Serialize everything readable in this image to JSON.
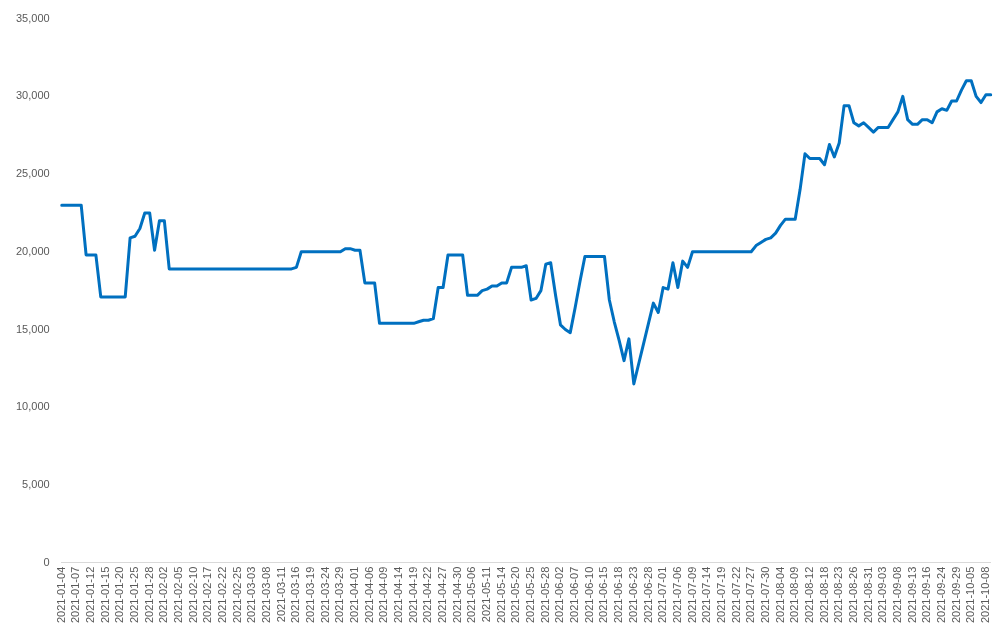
{
  "chart_data": {
    "type": "line",
    "categories": [
      "2021-01-04",
      null,
      null,
      "2021-01-07",
      null,
      null,
      "2021-01-12",
      null,
      null,
      "2021-01-15",
      null,
      null,
      "2021-01-20",
      null,
      null,
      "2021-01-25",
      null,
      null,
      "2021-01-28",
      null,
      null,
      "2021-02-02",
      null,
      null,
      "2021-02-05",
      null,
      null,
      "2021-02-10",
      null,
      null,
      "2021-02-17",
      null,
      null,
      "2021-02-22",
      null,
      null,
      "2021-02-25",
      null,
      null,
      "2021-03-03",
      null,
      null,
      "2021-03-08",
      null,
      null,
      "2021-03-11",
      null,
      null,
      "2021-03-16",
      null,
      null,
      "2021-03-19",
      null,
      null,
      "2021-03-24",
      null,
      null,
      "2021-03-29",
      null,
      null,
      "2021-04-01",
      null,
      null,
      "2021-04-06",
      null,
      null,
      "2021-04-09",
      null,
      null,
      "2021-04-14",
      null,
      null,
      "2021-04-19",
      null,
      null,
      "2021-04-22",
      null,
      null,
      "2021-04-27",
      null,
      null,
      "2021-04-30",
      null,
      null,
      "2021-05-06",
      null,
      null,
      "2021-05-11",
      null,
      null,
      "2021-05-14",
      null,
      null,
      "2021-05-20",
      null,
      null,
      "2021-05-25",
      null,
      null,
      "2021-05-28",
      null,
      null,
      "2021-06-02",
      null,
      null,
      "2021-06-07",
      null,
      null,
      "2021-06-10",
      null,
      null,
      "2021-06-15",
      null,
      null,
      "2021-06-18",
      null,
      null,
      "2021-06-23",
      null,
      null,
      "2021-06-28",
      null,
      null,
      "2021-07-01",
      null,
      null,
      "2021-07-06",
      null,
      null,
      "2021-07-09",
      null,
      null,
      "2021-07-14",
      null,
      null,
      "2021-07-19",
      null,
      null,
      "2021-07-22",
      null,
      null,
      "2021-07-27",
      null,
      null,
      "2021-07-30",
      null,
      null,
      "2021-08-04",
      null,
      null,
      "2021-08-09",
      null,
      null,
      "2021-08-12",
      null,
      null,
      "2021-08-18",
      null,
      null,
      "2021-08-23",
      null,
      null,
      "2021-08-26",
      null,
      null,
      "2021-08-31",
      null,
      null,
      "2021-09-03",
      null,
      null,
      "2021-09-08",
      null,
      null,
      "2021-09-13",
      null,
      null,
      "2021-09-16",
      null,
      null,
      "2021-09-24",
      null,
      null,
      "2021-09-29",
      null,
      null,
      "2021-10-05",
      null,
      null,
      "2021-10-08",
      null
    ],
    "series": [
      {
        "color": "#0070c0",
        "values": [
          23000,
          23000,
          23000,
          23000,
          23000,
          19800,
          19800,
          19800,
          17100,
          17100,
          17100,
          17100,
          17100,
          17100,
          20900,
          21000,
          21500,
          22500,
          22500,
          20100,
          22000,
          22000,
          18900,
          18900,
          18900,
          18900,
          18900,
          18900,
          18900,
          18900,
          18900,
          18900,
          18900,
          18900,
          18900,
          18900,
          18900,
          18900,
          18900,
          18900,
          18900,
          18900,
          18900,
          18900,
          18900,
          18900,
          18900,
          18900,
          19000,
          20000,
          20000,
          20000,
          20000,
          20000,
          20000,
          20000,
          20000,
          20000,
          20200,
          20200,
          20100,
          20100,
          18000,
          18000,
          18000,
          15400,
          15400,
          15400,
          15400,
          15400,
          15400,
          15400,
          15400,
          15500,
          15600,
          15600,
          15700,
          17700,
          17700,
          19800,
          19800,
          19800,
          19800,
          17200,
          17200,
          17200,
          17500,
          17600,
          17800,
          17800,
          18000,
          18000,
          19000,
          19000,
          19000,
          19100,
          16900,
          17000,
          17500,
          19200,
          19300,
          17200,
          15300,
          15000,
          14800,
          16400,
          18100,
          19700,
          19700,
          19700,
          19700,
          19700,
          16900,
          15500,
          14300,
          13000,
          14400,
          11500,
          12800,
          14100,
          15400,
          16700,
          16100,
          17700,
          17600,
          19300,
          17700,
          19400,
          19000,
          20000,
          20000,
          20000,
          20000,
          20000,
          20000,
          20000,
          20000,
          20000,
          20000,
          20000,
          20000,
          20000,
          20400,
          20600,
          20800,
          20900,
          21200,
          21700,
          22100,
          22100,
          22100,
          24000,
          26300,
          26000,
          26000,
          26000,
          25600,
          26900,
          26100,
          27000,
          29400,
          29400,
          28300,
          28100,
          28300,
          28000,
          27700,
          28000,
          28000,
          28000,
          28500,
          29000,
          30000,
          28500,
          28200,
          28200,
          28500,
          28500,
          28300,
          29000,
          29200,
          29100,
          29700,
          29700,
          30400,
          31000,
          31000,
          30000,
          29600,
          30100,
          30100
        ]
      }
    ],
    "ylim": [
      0,
      35000
    ],
    "yticks": [
      0,
      {
        "value": 5000,
        "label": "5,000"
      },
      {
        "value": 10000,
        "label": "10,000"
      },
      {
        "value": 15000,
        "label": "15,000"
      },
      {
        "value": 20000,
        "label": "20,000"
      },
      {
        "value": 25000,
        "label": "25,000"
      },
      {
        "value": 30000,
        "label": "30,000"
      },
      {
        "value": 35000,
        "label": "35,000"
      }
    ],
    "grid": false,
    "legend": false,
    "marker": "none",
    "line_style": "solid"
  }
}
